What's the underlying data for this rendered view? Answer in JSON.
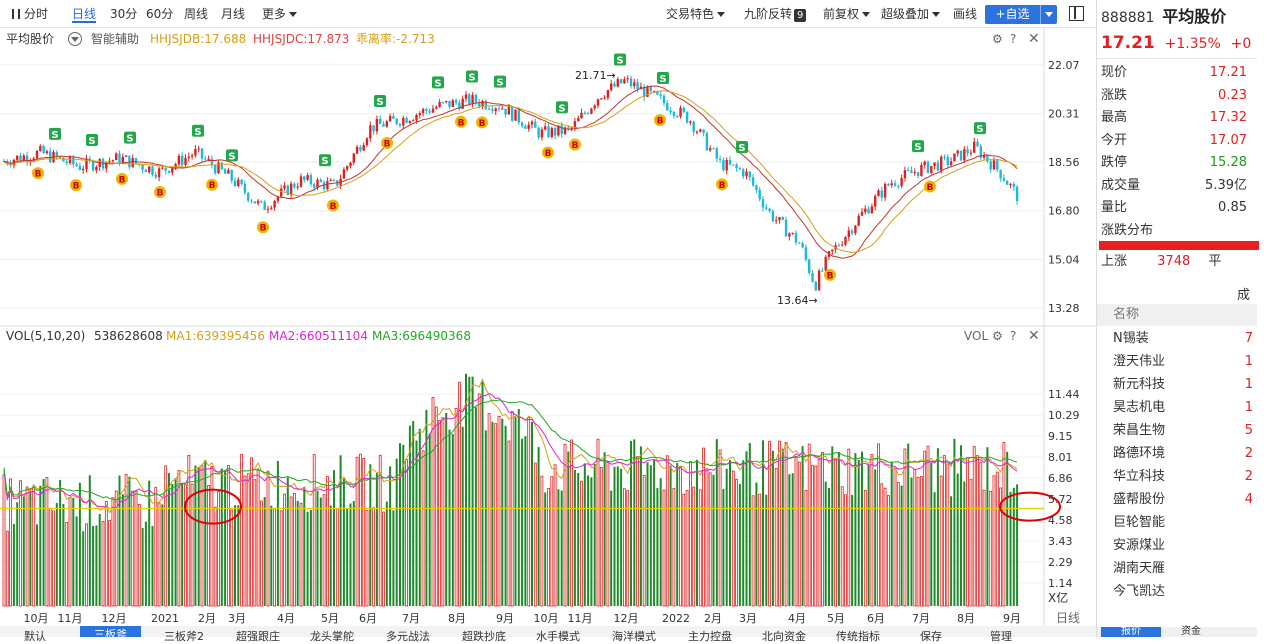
{
  "toolbar": {
    "periods": [
      "分时",
      "日线",
      "30分",
      "60分",
      "周线",
      "月线",
      "更多"
    ],
    "active_period": "日线",
    "trade_feature": "交易特色",
    "nine_turn": "九阶反转",
    "nine_badge": "9",
    "adjust": "前复权",
    "super_overlay": "超级叠加",
    "draw": "画线",
    "add_watch": "+自选"
  },
  "price_panel": {
    "stock_name": "平均股价",
    "assist": "智能辅助",
    "ind1": "HHJSJDB:17.688",
    "ind2": "HHJSJDC:17.873",
    "ind3": "乖离率:-2.713",
    "y_ticks": [
      "22.07",
      "20.31",
      "18.56",
      "16.80",
      "15.04",
      "13.28"
    ],
    "high_label": "21.71",
    "low_label": "13.64"
  },
  "vol_panel": {
    "title": "VOL(5,10,20)",
    "value": "538628608",
    "ma1": "MA1:639395456",
    "ma2": "MA2:660511104",
    "ma3": "MA3:696490368",
    "corner_label": "VOL",
    "y_ticks": [
      "11.44",
      "10.29",
      "9.15",
      "8.01",
      "6.86",
      "5.72",
      "4.58",
      "3.43",
      "2.29",
      "1.14"
    ],
    "unit": "X亿",
    "period_label": "日线"
  },
  "x_axis": [
    "10月",
    "11月",
    "12月",
    "2021",
    "2月",
    "3月",
    "4月",
    "5月",
    "6月",
    "7月",
    "8月",
    "9月",
    "10月",
    "11月",
    "12月",
    "2022",
    "2月",
    "3月",
    "4月",
    "5月",
    "6月",
    "7月",
    "8月",
    "9月"
  ],
  "quote": {
    "code": "888881",
    "name": "平均股价",
    "price": "17.21",
    "change_pct": "+1.35%",
    "change_cut": "+0",
    "rows": [
      {
        "k": "现价",
        "v": "17.21",
        "c": "red"
      },
      {
        "k": "涨跌",
        "v": "0.23",
        "c": "red"
      },
      {
        "k": "最高",
        "v": "17.32",
        "c": "red"
      },
      {
        "k": "今开",
        "v": "17.07",
        "c": "red"
      },
      {
        "k": "跌停",
        "v": "15.28",
        "c": "green"
      },
      {
        "k": "成交量",
        "v": "5.39亿",
        "c": ""
      },
      {
        "k": "量比",
        "v": "0.85",
        "c": ""
      }
    ],
    "dist_label": "涨跌分布",
    "up_label": "上涨",
    "up_count": "3748",
    "flat_label": "平",
    "cut_label": "成",
    "list_header": "名称",
    "list": [
      {
        "name": "N锡装",
        "v": "7"
      },
      {
        "name": "澄天伟业",
        "v": "1"
      },
      {
        "name": "新元科技",
        "v": "1"
      },
      {
        "name": "昊志机电",
        "v": "1"
      },
      {
        "name": "荣昌生物",
        "v": "5"
      },
      {
        "name": "路德环境",
        "v": "2"
      },
      {
        "name": "华立科技",
        "v": "2"
      },
      {
        "name": "盛帮股份",
        "v": "4"
      },
      {
        "name": "巨轮智能",
        "v": ""
      },
      {
        "name": "安源煤业",
        "v": ""
      },
      {
        "name": "湖南天雁",
        "v": ""
      },
      {
        "name": "今飞凯达",
        "v": ""
      }
    ],
    "bottom_tabs": [
      "报价",
      "资金"
    ]
  },
  "bottom_tabs": [
    "默认",
    "三板斧",
    "三板斧2",
    "超强跟庄",
    "龙头掌舵",
    "多元战法",
    "超跌抄底",
    "水手模式",
    "海洋模式",
    "主力控盘",
    "北向资金",
    "传统指标",
    "保存",
    "管理"
  ],
  "colors": {
    "up": "#e02020",
    "down": "#1a9a1a",
    "ma1": "#d4a017",
    "ma2": "#e020e0",
    "ma3": "#22a822",
    "accent": "#2b74e0"
  },
  "chart_data": {
    "type": "candlestick",
    "price_range": [
      13.28,
      22.07
    ],
    "vol_range_yi": [
      0,
      11.44
    ],
    "high": 21.71,
    "low": 13.64,
    "last": 17.21
  }
}
